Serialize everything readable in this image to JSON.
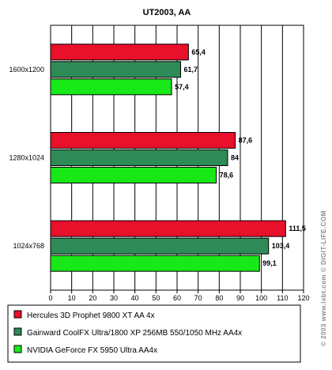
{
  "chart_data": {
    "type": "bar",
    "orientation": "horizontal",
    "title": "UT2003, AA",
    "categories": [
      "1600x1200",
      "1280x1024",
      "1024x768"
    ],
    "series": [
      {
        "name": "Hercules 3D Prophet 9800 XT AA 4x",
        "values": [
          65.4,
          87.6,
          111.5
        ],
        "labels": [
          "65,4",
          "87,6",
          "111,5"
        ],
        "color": "#e8102a"
      },
      {
        "name": "Gainward CoolFX Ultra/1800 XP 256MB 550/1050 MHz AA4x",
        "values": [
          61.7,
          84,
          103.4
        ],
        "labels": [
          "61,7",
          "84",
          "103,4"
        ],
        "color": "#2e8b57"
      },
      {
        "name": "NVIDIA GeForce FX 5950 Ultra AA4x",
        "values": [
          57.4,
          78.6,
          99.1
        ],
        "labels": [
          "57,4",
          "78,6",
          "99,1"
        ],
        "color": "#18e818"
      }
    ],
    "xlim": [
      0,
      120
    ],
    "xticks": [
      0,
      10,
      20,
      30,
      40,
      50,
      60,
      70,
      80,
      90,
      100,
      110,
      120
    ],
    "grid": true,
    "legend_position": "bottom"
  },
  "watermark": "© 2003 www.ixbt.com © DIGIT-LIFE.COM"
}
